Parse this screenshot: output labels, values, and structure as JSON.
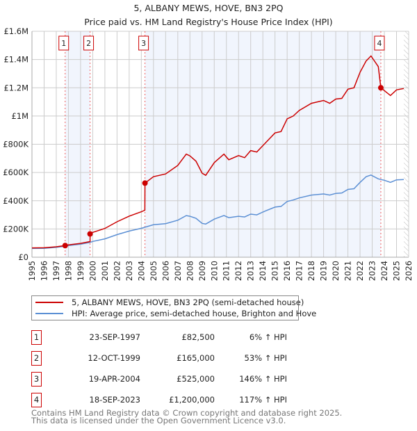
{
  "chart_data": {
    "type": "line",
    "title": "5, ALBANY MEWS, HOVE, BN3 2PQ",
    "subtitle": "Price paid vs. HM Land Registry's House Price Index (HPI)",
    "xlim": [
      1995,
      2026
    ],
    "ylim": [
      0,
      1600000
    ],
    "y_ticks": [
      {
        "value": 0,
        "label": "£0"
      },
      {
        "value": 200000,
        "label": "£200K"
      },
      {
        "value": 400000,
        "label": "£400K"
      },
      {
        "value": 600000,
        "label": "£600K"
      },
      {
        "value": 800000,
        "label": "£800K"
      },
      {
        "value": 1000000,
        "label": "£1M"
      },
      {
        "value": 1200000,
        "label": "£1.2M"
      },
      {
        "value": 1400000,
        "label": "£1.4M"
      },
      {
        "value": 1600000,
        "label": "£1.6M"
      }
    ],
    "x_ticks": [
      "1995",
      "1996",
      "1997",
      "1998",
      "1999",
      "2000",
      "2001",
      "2002",
      "2003",
      "2004",
      "2005",
      "2006",
      "2007",
      "2008",
      "2009",
      "2010",
      "2011",
      "2012",
      "2013",
      "2014",
      "2015",
      "2016",
      "2017",
      "2018",
      "2019",
      "2020",
      "2021",
      "2022",
      "2023",
      "2024",
      "2025",
      "2026"
    ],
    "grid": true,
    "series": [
      {
        "name": "5, ALBANY MEWS, HOVE, BN3 2PQ (semi-detached house)",
        "color": "#cc0000",
        "x": [
          1995,
          1996,
          1997,
          1997.73,
          1998,
          1999,
          1999.78,
          1999.79,
          2000,
          2001,
          2002,
          2003,
          2004,
          2004.29,
          2004.3,
          2005,
          2006,
          2007,
          2007.7,
          2008,
          2008.5,
          2009,
          2009.3,
          2010,
          2010.8,
          2011.2,
          2012,
          2012.5,
          2013,
          2013.5,
          2014,
          2015,
          2015.5,
          2016,
          2016.5,
          2017,
          2018,
          2019,
          2019.5,
          2020,
          2020.5,
          2021,
          2021.5,
          2022,
          2022.5,
          2022.9,
          2023.5,
          2023.71,
          2024,
          2024.5,
          2025,
          2025.6
        ],
        "y": [
          66000,
          67000,
          74000,
          82500,
          87000,
          98000,
          111000,
          165000,
          176000,
          204000,
          251000,
          291000,
          322000,
          333000,
          525000,
          570000,
          590000,
          650000,
          730000,
          718000,
          680000,
          595000,
          580000,
          670000,
          730000,
          690000,
          720000,
          705000,
          755000,
          745000,
          790000,
          880000,
          890000,
          980000,
          1000000,
          1040000,
          1090000,
          1110000,
          1090000,
          1120000,
          1125000,
          1190000,
          1200000,
          1310000,
          1390000,
          1425000,
          1350000,
          1200000,
          1180000,
          1145000,
          1185000,
          1195000
        ]
      },
      {
        "name": "HPI: Average price, semi-detached house, Brighton and Hove",
        "color": "#5b8fd4",
        "x": [
          1995,
          1996,
          1997,
          1997.73,
          1998,
          1999,
          1999.78,
          2000,
          2001,
          2002,
          2003,
          2004,
          2004.3,
          2005,
          2006,
          2007,
          2007.7,
          2008,
          2008.5,
          2009,
          2009.3,
          2010,
          2010.8,
          2011.2,
          2012,
          2012.5,
          2013,
          2013.5,
          2014,
          2015,
          2015.5,
          2016,
          2016.5,
          2017,
          2018,
          2019,
          2019.5,
          2020,
          2020.5,
          2021,
          2021.5,
          2022,
          2022.5,
          2022.9,
          2023.5,
          2024,
          2024.5,
          2025,
          2025.6
        ],
        "y": [
          62000,
          63000,
          70000,
          78000,
          82000,
          92000,
          105000,
          112000,
          130000,
          160000,
          185000,
          205000,
          212000,
          230000,
          238000,
          262000,
          295000,
          290000,
          275000,
          240000,
          235000,
          270000,
          295000,
          280000,
          290000,
          285000,
          305000,
          300000,
          320000,
          355000,
          360000,
          395000,
          405000,
          420000,
          440000,
          448000,
          440000,
          452000,
          455000,
          480000,
          485000,
          530000,
          570000,
          582000,
          555000,
          545000,
          530000,
          548000,
          550000
        ]
      }
    ],
    "sales": [
      {
        "id": "1",
        "x": 1997.73,
        "price": 82500
      },
      {
        "id": "2",
        "x": 1999.78,
        "price": 165000
      },
      {
        "id": "3",
        "x": 2004.3,
        "price": 525000
      },
      {
        "id": "4",
        "x": 2023.71,
        "price": 1200000
      }
    ],
    "data_end": 2025.6,
    "legend_position": "bottom"
  },
  "table": [
    {
      "num": "1",
      "date": "23-SEP-1997",
      "price": "£82,500",
      "hpi": "6% ↑ HPI"
    },
    {
      "num": "2",
      "date": "12-OCT-1999",
      "price": "£165,000",
      "hpi": "53% ↑ HPI"
    },
    {
      "num": "3",
      "date": "19-APR-2004",
      "price": "£525,000",
      "hpi": "146% ↑ HPI"
    },
    {
      "num": "4",
      "date": "18-SEP-2023",
      "price": "£1,200,000",
      "hpi": "117% ↑ HPI"
    }
  ],
  "footer": {
    "line1": "Contains HM Land Registry data © Crown copyright and database right 2025.",
    "line2": "This data is licensed under the Open Government Licence v3.0."
  }
}
